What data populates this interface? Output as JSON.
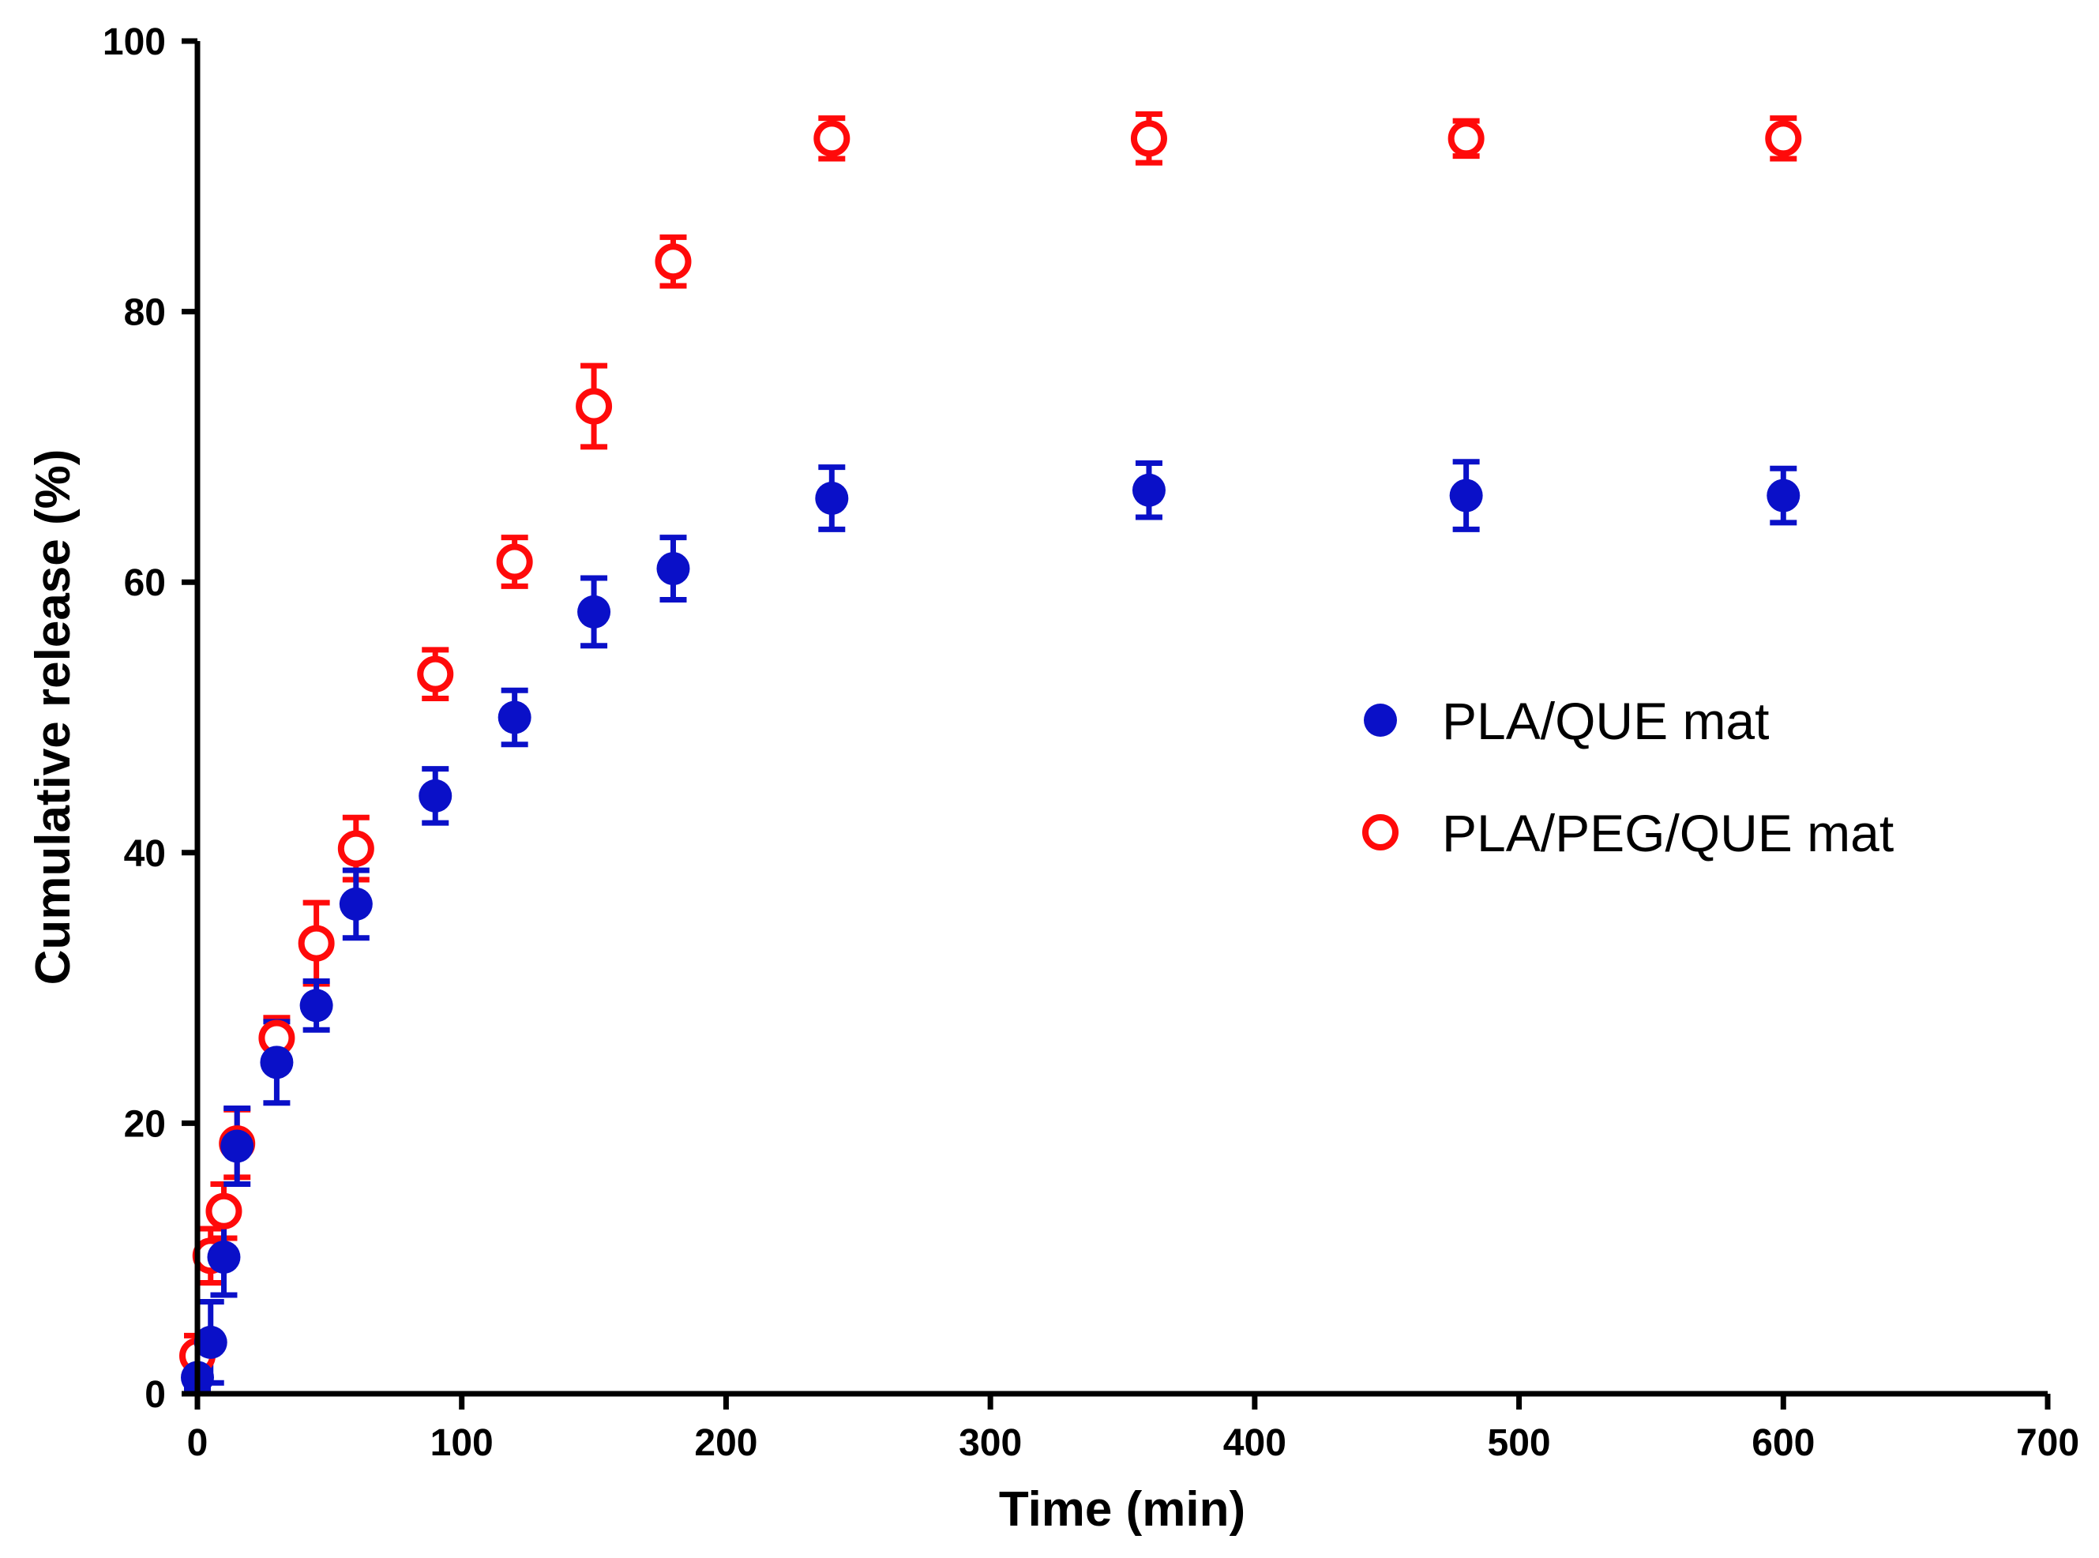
{
  "chart_data": {
    "type": "scatter",
    "title": "",
    "xlabel": "Time (min)",
    "ylabel": "Cumulative release (%)",
    "xlim": [
      0,
      700
    ],
    "ylim": [
      0,
      100
    ],
    "xticks": [
      0,
      100,
      200,
      300,
      400,
      500,
      600,
      700
    ],
    "yticks": [
      0,
      20,
      40,
      60,
      80,
      100
    ],
    "grid": false,
    "legend_position": "middle-right",
    "series": [
      {
        "name": "PLA/QUE mat",
        "marker": "filled-circle",
        "color": "#0a10c8",
        "x": [
          0,
          5,
          10,
          15,
          30,
          45,
          60,
          90,
          120,
          150,
          180,
          240,
          360,
          480,
          600
        ],
        "y": [
          1.2,
          3.8,
          10.1,
          18.3,
          24.5,
          28.7,
          36.2,
          44.2,
          50.0,
          57.8,
          61.0,
          66.2,
          66.8,
          66.4,
          66.4
        ],
        "error": [
          0.8,
          3.0,
          2.8,
          2.8,
          3.0,
          1.8,
          2.5,
          2.0,
          2.0,
          2.5,
          2.3,
          2.3,
          2.0,
          2.5,
          2.0
        ]
      },
      {
        "name": "PLA/PEG/QUE mat",
        "marker": "open-circle",
        "color": "#ff0a0a",
        "x": [
          0,
          5,
          10,
          15,
          30,
          45,
          60,
          90,
          120,
          150,
          180,
          240,
          360,
          480,
          600
        ],
        "y": [
          2.8,
          10.2,
          13.5,
          18.5,
          26.3,
          33.3,
          40.3,
          53.2,
          61.5,
          73.0,
          83.7,
          92.8,
          92.8,
          92.8,
          92.8
        ],
        "error": [
          1.5,
          2.0,
          2.0,
          2.5,
          1.5,
          3.0,
          2.3,
          1.8,
          1.8,
          3.0,
          1.8,
          1.5,
          1.8,
          1.3,
          1.5
        ]
      }
    ]
  }
}
